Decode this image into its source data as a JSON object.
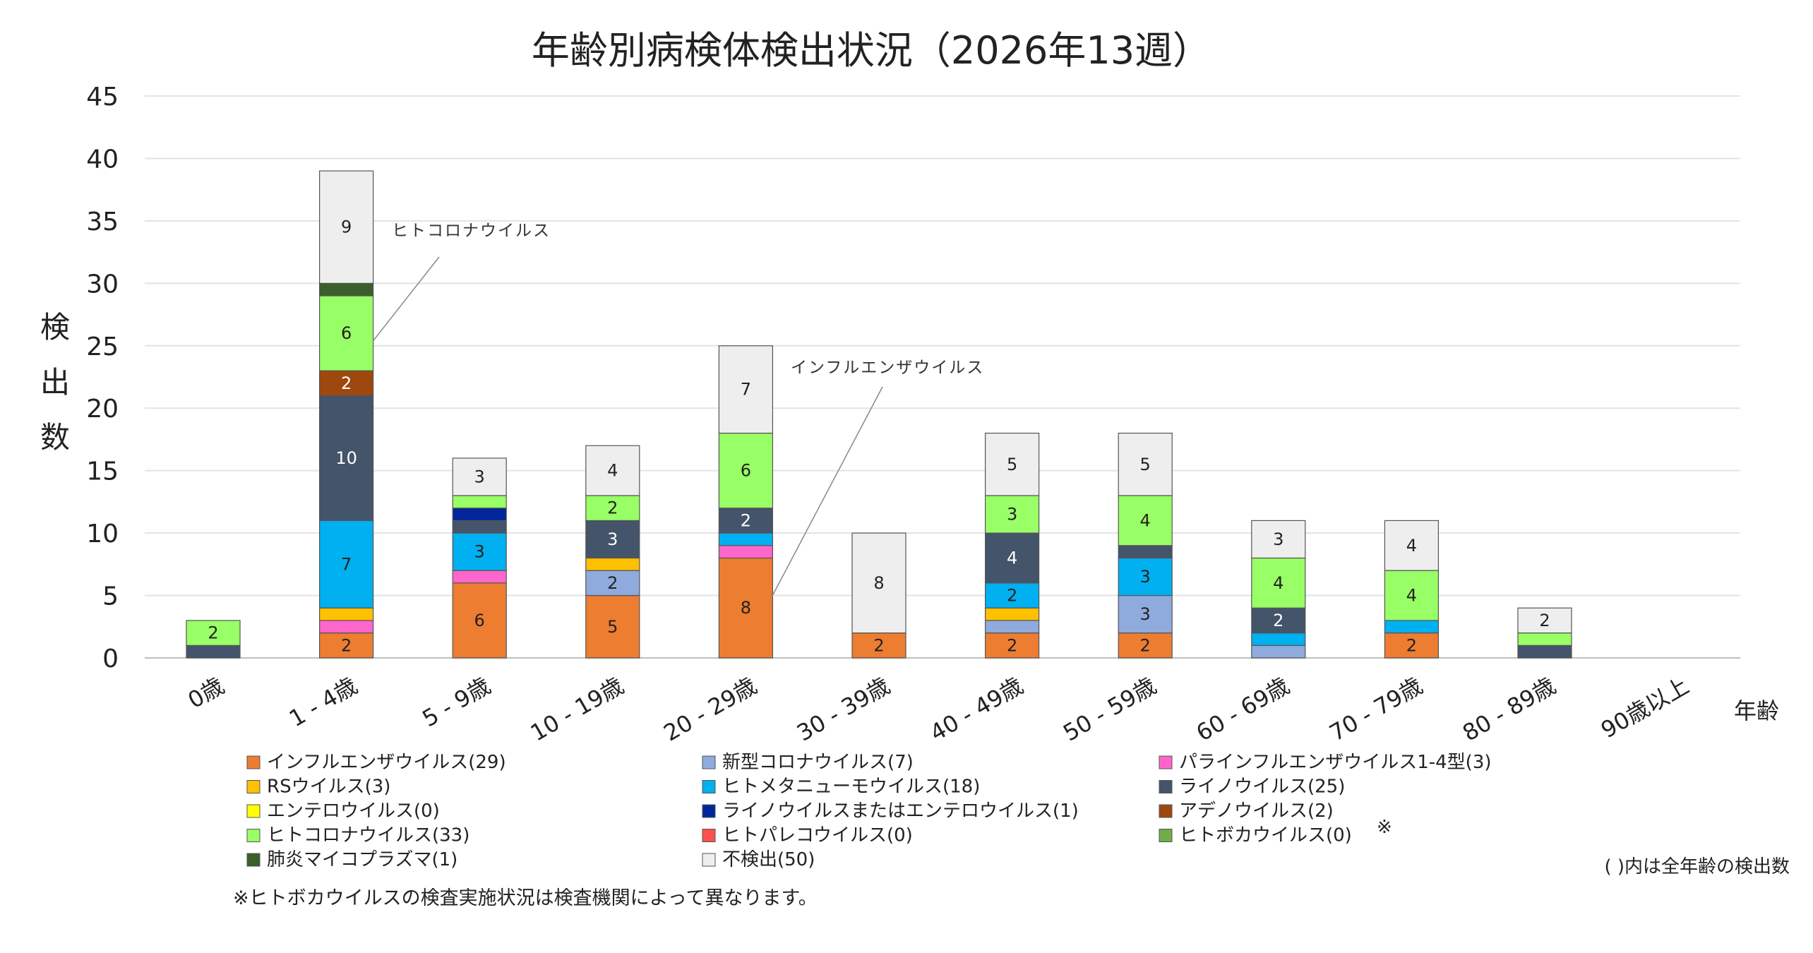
{
  "chart_data": {
    "type": "bar",
    "stacked": true,
    "title": "年齢別病検体検出状況（2026年13週）",
    "xlabel": "年齢",
    "ylabel": "検出数",
    "ylim": [
      0,
      45
    ],
    "yticks": [
      "0",
      "5",
      "10",
      "15",
      "20",
      "25",
      "30",
      "35",
      "40",
      "45"
    ],
    "grid": true,
    "categories": [
      "0歳",
      "1 - 4歳",
      "5 - 9歳",
      "10 - 19歳",
      "20 - 29歳",
      "30 - 39歳",
      "40 - 49歳",
      "50 - 59歳",
      "60 - 69歳",
      "70 - 79歳",
      "80 - 89歳",
      "90歳以上"
    ],
    "series": [
      {
        "name": "インフルエンザウイルス",
        "legend": "インフルエンザウイルス(29)",
        "color": "#ED7D31",
        "label_color": "#222222",
        "values": [
          0,
          2,
          6,
          5,
          8,
          2,
          2,
          2,
          0,
          2,
          0,
          0
        ]
      },
      {
        "name": "新型コロナウイルス",
        "legend": "新型コロナウイルス(7)",
        "color": "#8FAADC",
        "label_color": "#222222",
        "values": [
          0,
          0,
          0,
          2,
          0,
          0,
          1,
          3,
          1,
          0,
          0,
          0
        ]
      },
      {
        "name": "パラインフルエンザウイルス1-4型",
        "legend": "パラインフルエンザウイルス1-4型(3)",
        "color": "#FF66CC",
        "label_color": "#222222",
        "values": [
          0,
          1,
          1,
          0,
          1,
          0,
          0,
          0,
          0,
          0,
          0,
          0
        ]
      },
      {
        "name": "RSウイルス",
        "legend": "RSウイルス(3)",
        "color": "#FFC000",
        "label_color": "#222222",
        "values": [
          0,
          1,
          0,
          1,
          0,
          0,
          1,
          0,
          0,
          0,
          0,
          0
        ]
      },
      {
        "name": "ヒトメタニューモウイルス",
        "legend": "ヒトメタニューモウイルス(18)",
        "color": "#00B0F0",
        "label_color": "#222222",
        "values": [
          0,
          7,
          3,
          0,
          1,
          0,
          2,
          3,
          1,
          1,
          0,
          0
        ]
      },
      {
        "name": "ライノウイルス",
        "legend": "ライノウイルス(25)",
        "color": "#44546A",
        "label_color": "#ffffff",
        "values": [
          1,
          10,
          1,
          3,
          2,
          0,
          4,
          1,
          2,
          0,
          1,
          0
        ]
      },
      {
        "name": "エンテロウイルス",
        "legend": "エンテロウイルス(0)",
        "color": "#FFFF00",
        "label_color": "#222222",
        "values": [
          0,
          0,
          0,
          0,
          0,
          0,
          0,
          0,
          0,
          0,
          0,
          0
        ]
      },
      {
        "name": "ライノウイルスまたはエンテロウイルス",
        "legend": "ライノウイルスまたはエンテロウイルス(1)",
        "color": "#002699",
        "label_color": "#ffffff",
        "values": [
          0,
          0,
          1,
          0,
          0,
          0,
          0,
          0,
          0,
          0,
          0,
          0
        ]
      },
      {
        "name": "アデノウイルス",
        "legend": "アデノウイルス(2)",
        "color": "#9E480E",
        "label_color": "#ffffff",
        "values": [
          0,
          2,
          0,
          0,
          0,
          0,
          0,
          0,
          0,
          0,
          0,
          0
        ]
      },
      {
        "name": "ヒトコロナウイルス",
        "legend": "ヒトコロナウイルス(33)",
        "color": "#99FF66",
        "label_color": "#222222",
        "values": [
          2,
          6,
          1,
          2,
          6,
          0,
          3,
          4,
          4,
          4,
          1,
          0
        ]
      },
      {
        "name": "ヒトパレコウイルス",
        "legend": "ヒトパレコウイルス(0)",
        "color": "#FF5050",
        "label_color": "#222222",
        "values": [
          0,
          0,
          0,
          0,
          0,
          0,
          0,
          0,
          0,
          0,
          0,
          0
        ]
      },
      {
        "name": "ヒトボカウイルス",
        "legend": "ヒトボカウイルス(0)",
        "color": "#70AD47",
        "label_color": "#222222",
        "values": [
          0,
          0,
          0,
          0,
          0,
          0,
          0,
          0,
          0,
          0,
          0,
          0
        ]
      },
      {
        "name": "肺炎マイコプラズマ",
        "legend": "肺炎マイコプラズマ(1)",
        "color": "#3A5F2A",
        "label_color": "#ffffff",
        "values": [
          0,
          1,
          0,
          0,
          0,
          0,
          0,
          0,
          0,
          0,
          0,
          0
        ]
      },
      {
        "name": "不検出",
        "legend": "不検出(50)",
        "color": "#EEEEEE",
        "label_color": "#222222",
        "values": [
          0,
          9,
          3,
          4,
          7,
          8,
          5,
          5,
          3,
          4,
          2,
          0
        ]
      }
    ],
    "annotations": [
      {
        "text": "ヒトコロナウイルス",
        "category": "1 - 4歳",
        "series": "ヒトコロナウイルス"
      },
      {
        "text": "インフルエンザウイルス",
        "category": "20 - 29歳",
        "series": "インフルエンザウイルス"
      }
    ],
    "legend_position": "bottom",
    "legend_mark": "※",
    "legend_note": "( )内は全年齢の検出数",
    "footnote": "※ヒトボカウイルスの検査実施状況は検査機関によって異なります。"
  }
}
